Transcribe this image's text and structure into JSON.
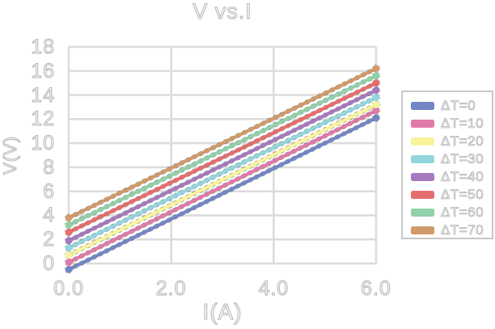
{
  "window": {
    "background": "#ffffff"
  },
  "colors": {
    "gridline": "#dcdcdc",
    "text_outline": "#b3b3b3",
    "legend_border": "#c8c8c8",
    "marker_speckle": "#333333"
  },
  "chart_data": {
    "type": "line",
    "title": "V vs.I",
    "xlabel": "I(A)",
    "ylabel": "V(V)",
    "xlim": [
      0,
      6
    ],
    "ylim": [
      0,
      18
    ],
    "grid": true,
    "legend_position": "right",
    "x_ticks": [
      0,
      2,
      4,
      6
    ],
    "x_tick_labels": [
      "0.0",
      "2.0",
      "4.0",
      "6.0"
    ],
    "y_ticks": [
      0,
      2,
      4,
      6,
      8,
      10,
      12,
      14,
      16,
      18
    ],
    "y_tick_labels": [
      "0",
      "2",
      "4",
      "6",
      "8",
      "10",
      "12",
      "14",
      "16",
      "18"
    ],
    "series": [
      {
        "name": "ΔT=0",
        "color": "#7286c5",
        "x": [
          0,
          6
        ],
        "y": [
          -0.5,
          12.1
        ]
      },
      {
        "name": "ΔT=10",
        "color": "#e07aa8",
        "x": [
          0,
          6
        ],
        "y": [
          0.1,
          12.7
        ]
      },
      {
        "name": "ΔT=20",
        "color": "#f9f49c",
        "x": [
          0,
          6
        ],
        "y": [
          0.7,
          13.2
        ]
      },
      {
        "name": "ΔT=30",
        "color": "#92d5dd",
        "x": [
          0,
          6
        ],
        "y": [
          1.3,
          13.8
        ]
      },
      {
        "name": "ΔT=40",
        "color": "#a579bd",
        "x": [
          0,
          6
        ],
        "y": [
          1.9,
          14.4
        ]
      },
      {
        "name": "ΔT=50",
        "color": "#e66d6d",
        "x": [
          0,
          6
        ],
        "y": [
          2.6,
          15.0
        ]
      },
      {
        "name": "ΔT=60",
        "color": "#91d1a8",
        "x": [
          0,
          6
        ],
        "y": [
          3.2,
          15.6
        ]
      },
      {
        "name": "ΔT=70",
        "color": "#d09a6b",
        "x": [
          0,
          6
        ],
        "y": [
          3.8,
          16.2
        ]
      }
    ]
  }
}
